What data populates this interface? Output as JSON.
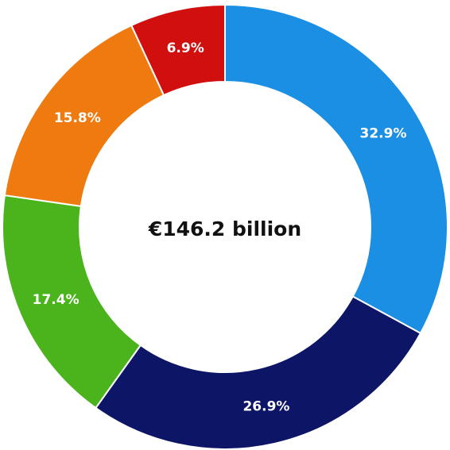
{
  "chart_data": {
    "type": "pie",
    "subtype": "donut",
    "center_text": "€146.2 billion",
    "slices": [
      {
        "label": "32.9%",
        "value": 32.9,
        "color": "#1a8fe3"
      },
      {
        "label": "26.9%",
        "value": 26.9,
        "color": "#0d1566"
      },
      {
        "label": "17.4%",
        "value": 17.4,
        "color": "#4bb31c"
      },
      {
        "label": "15.8%",
        "value": 15.8,
        "color": "#ee7a10"
      },
      {
        "label": "6.9%",
        "value": 6.9,
        "color": "#d10f0f"
      }
    ]
  }
}
